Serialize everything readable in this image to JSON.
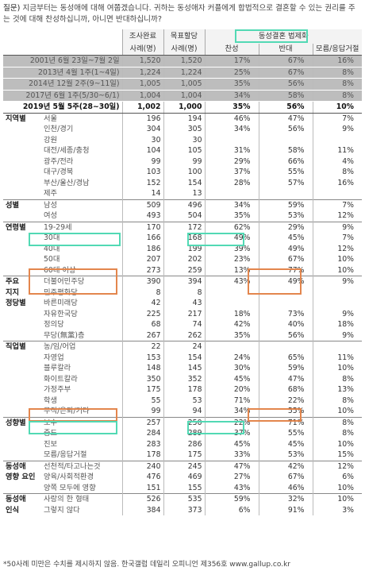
{
  "question": {
    "tag": "질문)",
    "text": "지금부터는 동성애에 대해 여쭙겠습니다. 귀하는 동성애자 커플에게 합법적으로 결혼할 수 있는 권리를 주는 것에 대해 찬성하십니까, 아니면 반대하십니까?"
  },
  "header": {
    "group_title": "동성결혼 법제화",
    "col_sample": "조사완료",
    "col_sample_sub": "사례(명)",
    "col_target": "목표할당",
    "col_target_sub": "사례(명)",
    "col_for": "찬성",
    "col_against": "반대",
    "col_dk": "모름/응답거절"
  },
  "history": [
    {
      "label": "2001년 6월 23일~7월 2일",
      "n1": "1,520",
      "n2": "1,520",
      "for": "17%",
      "against": "67%",
      "dk": "16%"
    },
    {
      "label": "2013년 4월 1주(1~4일)",
      "n1": "1,224",
      "n2": "1,224",
      "for": "25%",
      "against": "67%",
      "dk": "8%"
    },
    {
      "label": "2014년 12월 2주(9~11일)",
      "n1": "1,005",
      "n2": "1,005",
      "for": "35%",
      "against": "56%",
      "dk": "8%"
    },
    {
      "label": "2017년 6월 1주(5/30~6/1)",
      "n1": "1,004",
      "n2": "1,004",
      "for": "34%",
      "against": "58%",
      "dk": "8%"
    }
  ],
  "current": {
    "label": "2019년 5월 5주(28~30일)",
    "n1": "1,002",
    "n2": "1,000",
    "for": "35%",
    "against": "56%",
    "dk": "10%"
  },
  "rows": [
    {
      "cat": "지역별",
      "label": "서울",
      "n1": "196",
      "n2": "194",
      "for": "46%",
      "against": "47%",
      "dk": "7%",
      "grp": true
    },
    {
      "cat": "",
      "label": "인천/경기",
      "n1": "304",
      "n2": "305",
      "for": "34%",
      "against": "56%",
      "dk": "9%"
    },
    {
      "cat": "",
      "label": "강원",
      "n1": "30",
      "n2": "30",
      "for": "",
      "against": "",
      "dk": ""
    },
    {
      "cat": "",
      "label": "대전/세종/충청",
      "n1": "104",
      "n2": "105",
      "for": "31%",
      "against": "58%",
      "dk": "11%"
    },
    {
      "cat": "",
      "label": "광주/전라",
      "n1": "99",
      "n2": "99",
      "for": "29%",
      "against": "66%",
      "dk": "4%"
    },
    {
      "cat": "",
      "label": "대구/경북",
      "n1": "103",
      "n2": "100",
      "for": "37%",
      "against": "55%",
      "dk": "8%"
    },
    {
      "cat": "",
      "label": "부산/울산/경남",
      "n1": "152",
      "n2": "154",
      "for": "28%",
      "against": "57%",
      "dk": "16%"
    },
    {
      "cat": "",
      "label": "제주",
      "n1": "14",
      "n2": "13",
      "for": "",
      "against": "",
      "dk": ""
    },
    {
      "cat": "성별",
      "label": "남성",
      "n1": "509",
      "n2": "496",
      "for": "34%",
      "against": "59%",
      "dk": "7%",
      "grp": true
    },
    {
      "cat": "",
      "label": "여성",
      "n1": "493",
      "n2": "504",
      "for": "35%",
      "against": "53%",
      "dk": "12%"
    },
    {
      "cat": "연령별",
      "label": "19-29세",
      "n1": "170",
      "n2": "172",
      "for": "62%",
      "against": "29%",
      "dk": "9%",
      "grp": true
    },
    {
      "cat": "",
      "label": "30대",
      "n1": "166",
      "n2": "168",
      "for": "49%",
      "against": "45%",
      "dk": "7%"
    },
    {
      "cat": "",
      "label": "40대",
      "n1": "186",
      "n2": "199",
      "for": "39%",
      "against": "49%",
      "dk": "12%"
    },
    {
      "cat": "",
      "label": "50대",
      "n1": "207",
      "n2": "202",
      "for": "23%",
      "against": "67%",
      "dk": "10%"
    },
    {
      "cat": "",
      "label": "60대 이상",
      "n1": "273",
      "n2": "259",
      "for": "13%",
      "against": "77%",
      "dk": "10%"
    },
    {
      "cat": "주요",
      "label": "더불어민주당",
      "n1": "390",
      "n2": "394",
      "for": "43%",
      "against": "49%",
      "dk": "9%",
      "grp": true
    },
    {
      "cat": "지지",
      "label": "민주평화당",
      "n1": "8",
      "n2": "8",
      "for": "",
      "against": "",
      "dk": ""
    },
    {
      "cat": "정당별",
      "label": "바른미래당",
      "n1": "42",
      "n2": "43",
      "for": "",
      "against": "",
      "dk": ""
    },
    {
      "cat": "",
      "label": "자유한국당",
      "n1": "225",
      "n2": "217",
      "for": "18%",
      "against": "73%",
      "dk": "9%"
    },
    {
      "cat": "",
      "label": "정의당",
      "n1": "68",
      "n2": "74",
      "for": "42%",
      "against": "40%",
      "dk": "18%"
    },
    {
      "cat": "",
      "label": "무당(無黨)층",
      "n1": "267",
      "n2": "262",
      "for": "35%",
      "against": "56%",
      "dk": "9%"
    },
    {
      "cat": "직업별",
      "label": "농/임/어업",
      "n1": "22",
      "n2": "24",
      "for": "",
      "against": "",
      "dk": "",
      "grp": true
    },
    {
      "cat": "",
      "label": "자영업",
      "n1": "153",
      "n2": "154",
      "for": "24%",
      "against": "65%",
      "dk": "11%"
    },
    {
      "cat": "",
      "label": "블루칼라",
      "n1": "148",
      "n2": "145",
      "for": "30%",
      "against": "59%",
      "dk": "10%"
    },
    {
      "cat": "",
      "label": "화이트칼라",
      "n1": "350",
      "n2": "352",
      "for": "45%",
      "against": "47%",
      "dk": "8%"
    },
    {
      "cat": "",
      "label": "가정주부",
      "n1": "175",
      "n2": "178",
      "for": "20%",
      "against": "68%",
      "dk": "13%"
    },
    {
      "cat": "",
      "label": "학생",
      "n1": "55",
      "n2": "53",
      "for": "71%",
      "against": "22%",
      "dk": "8%"
    },
    {
      "cat": "",
      "label": "무직/은퇴/기타",
      "n1": "99",
      "n2": "94",
      "for": "34%",
      "against": "55%",
      "dk": "10%"
    },
    {
      "cat": "성향별",
      "label": "보수",
      "n1": "257",
      "n2": "250",
      "for": "22%",
      "against": "71%",
      "dk": "8%",
      "grp": true
    },
    {
      "cat": "",
      "label": "중도",
      "n1": "284",
      "n2": "289",
      "for": "37%",
      "against": "55%",
      "dk": "8%"
    },
    {
      "cat": "",
      "label": "진보",
      "n1": "283",
      "n2": "286",
      "for": "45%",
      "against": "45%",
      "dk": "10%"
    },
    {
      "cat": "",
      "label": "모름/응답거절",
      "n1": "178",
      "n2": "175",
      "for": "33%",
      "against": "53%",
      "dk": "15%"
    },
    {
      "cat": "동성애",
      "label": "선천적/타고나는것",
      "n1": "240",
      "n2": "245",
      "for": "47%",
      "against": "42%",
      "dk": "12%",
      "grp": true
    },
    {
      "cat": "영향 요인",
      "label": "양육/사회적환경",
      "n1": "476",
      "n2": "469",
      "for": "27%",
      "against": "67%",
      "dk": "6%"
    },
    {
      "cat": "",
      "label": "양쪽 모두에 영향",
      "n1": "151",
      "n2": "155",
      "for": "43%",
      "against": "46%",
      "dk": "10%"
    },
    {
      "cat": "동성애",
      "label": "사랑의 한 형태",
      "n1": "526",
      "n2": "535",
      "for": "59%",
      "against": "32%",
      "dk": "10%",
      "grp": true
    },
    {
      "cat": "인식",
      "label": "그렇지 않다",
      "n1": "384",
      "n2": "373",
      "for": "6%",
      "against": "91%",
      "dk": "3%"
    }
  ],
  "footnote": "*50사례 미만은 수치를 제시하지 않음. 한국갤럽 데일리 오피니언 제356호 www.gallup.co.kr"
}
